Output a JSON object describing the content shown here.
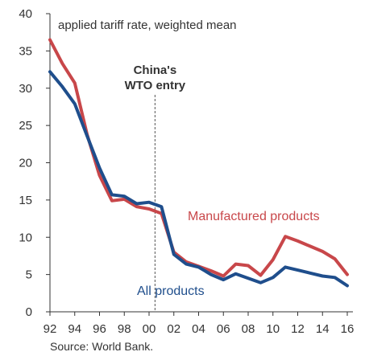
{
  "chart_data": {
    "type": "line",
    "title": "",
    "subtitle": "applied tariff rate, weighted mean",
    "source": "Source: World Bank.",
    "xlabel": "",
    "ylabel": "",
    "xlim": [
      1992,
      2016
    ],
    "ylim": [
      0,
      40
    ],
    "x_ticks": [
      1992,
      1994,
      1996,
      1998,
      2000,
      2002,
      2004,
      2006,
      2008,
      2010,
      2012,
      2014,
      2016
    ],
    "x_tick_labels": [
      "92",
      "94",
      "96",
      "98",
      "00",
      "02",
      "04",
      "06",
      "08",
      "10",
      "12",
      "14",
      "16"
    ],
    "y_ticks": [
      0,
      5,
      10,
      15,
      20,
      25,
      30,
      35,
      40
    ],
    "y_tick_labels": [
      "0",
      "5",
      "10",
      "15",
      "20",
      "25",
      "30",
      "35",
      "40"
    ],
    "grid": false,
    "annotation": {
      "x": 2001,
      "line1": "China's",
      "line2": "WTO entry"
    },
    "series": [
      {
        "name": "Manufactured products",
        "color": "#c8474a",
        "x": [
          1992,
          1993,
          1994,
          1995,
          1996,
          1997,
          1998,
          1999,
          2000,
          2001,
          2002,
          2003,
          2004,
          2005,
          2006,
          2007,
          2008,
          2009,
          2010,
          2011,
          2012,
          2013,
          2014,
          2015,
          2016
        ],
        "values": [
          36.5,
          33.3,
          30.7,
          23.8,
          18.3,
          14.9,
          15.1,
          14.1,
          13.8,
          13.2,
          8.0,
          6.7,
          6.1,
          5.5,
          4.8,
          6.4,
          6.2,
          4.9,
          7.0,
          10.1,
          9.5,
          8.8,
          8.1,
          7.1,
          5.0
        ]
      },
      {
        "name": "All products",
        "color": "#1f4e8c",
        "x": [
          1992,
          1993,
          1994,
          1995,
          1996,
          1997,
          1998,
          1999,
          2000,
          2001,
          2002,
          2003,
          2004,
          2005,
          2006,
          2007,
          2008,
          2009,
          2010,
          2011,
          2012,
          2013,
          2014,
          2015,
          2016
        ],
        "values": [
          32.2,
          30.2,
          27.9,
          23.6,
          19.3,
          15.7,
          15.5,
          14.5,
          14.7,
          14.1,
          7.7,
          6.4,
          6.0,
          5.0,
          4.3,
          5.1,
          4.5,
          3.9,
          4.6,
          6.0,
          5.6,
          5.2,
          4.8,
          4.6,
          3.5
        ]
      }
    ]
  }
}
